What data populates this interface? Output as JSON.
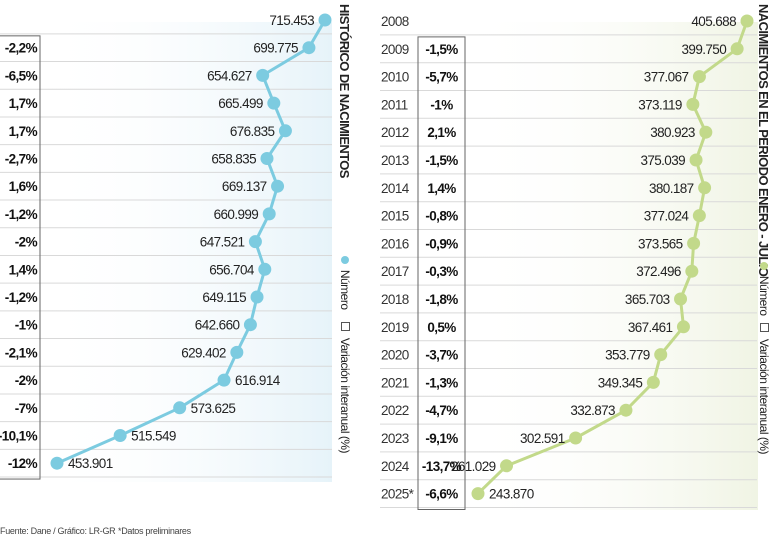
{
  "footer": {
    "source": "Fuente: Dane / Gráfico: LR-GR",
    "note": "*Datos preliminares"
  },
  "colors": {
    "left_series": "#7ccbe0",
    "right_series": "#c2d98a",
    "left_bg_fade": "#e8f4fa",
    "right_bg_fade": "#f1f5e6",
    "grid": "#d9d9d9",
    "box_border": "#666666"
  },
  "chart_data": [
    {
      "type": "line",
      "orientation": "horizontal-values-vertical-categories",
      "title": "HISTÓRICO DE NACIMIENTOS",
      "legend": [
        {
          "name": "Número",
          "marker": "dot"
        },
        {
          "name": "Variación interanual (%)",
          "marker": "square-outline"
        }
      ],
      "legend_placement": "right-vertical",
      "categories": [
        "2008",
        "2009",
        "2010",
        "2011",
        "2012",
        "2013",
        "2014",
        "2015",
        "2016",
        "2017",
        "2018",
        "2019",
        "2020",
        "2021",
        "2022",
        "2023",
        "2024"
      ],
      "series": [
        {
          "name": "Número",
          "values": [
            715453,
            699775,
            654627,
            665499,
            676835,
            658835,
            669137,
            660999,
            647521,
            656704,
            649115,
            642660,
            629402,
            616914,
            573625,
            515549,
            453901
          ],
          "labels": [
            "715.453",
            "699.775",
            "654.627",
            "665.499",
            "676.835",
            "658.835",
            "669.137",
            "660.999",
            "647.521",
            "656.704",
            "649.115",
            "642.660",
            "629.402",
            "616.914",
            "573.625",
            "515.549",
            "453.901"
          ]
        },
        {
          "name": "Variación interanual (%)",
          "labels": [
            "",
            "-2,2%",
            "-6,5%",
            "1,7%",
            "1,7%",
            "-2,7%",
            "1,6%",
            "-1,2%",
            "-2%",
            "1,4%",
            "-1,2%",
            "-1%",
            "-2,1%",
            "-2%",
            "-7%",
            "-10,1%",
            "-12%"
          ]
        }
      ],
      "xlim": [
        453901,
        715453
      ],
      "grid": true
    },
    {
      "type": "line",
      "orientation": "horizontal-values-vertical-categories",
      "title": "NACIMIENTOS EN EL PERIODO ENERO - JULIO",
      "legend": [
        {
          "name": "Número",
          "marker": "dot"
        },
        {
          "name": "Variación interanual (%)",
          "marker": "square-outline"
        }
      ],
      "legend_placement": "right-vertical",
      "categories": [
        "2008",
        "2009",
        "2010",
        "2011",
        "2012",
        "2013",
        "2014",
        "2015",
        "2016",
        "2017",
        "2018",
        "2019",
        "2020",
        "2021",
        "2022",
        "2023",
        "2024",
        "2025*"
      ],
      "series": [
        {
          "name": "Número",
          "values": [
            405688,
            399750,
            377067,
            373119,
            380923,
            375039,
            380187,
            377024,
            373565,
            372496,
            365703,
            367461,
            353779,
            349345,
            332873,
            302591,
            261029,
            243870
          ],
          "labels": [
            "405.688",
            "399.750",
            "377.067",
            "373.119",
            "380.923",
            "375.039",
            "380.187",
            "377.024",
            "373.565",
            "372.496",
            "365.703",
            "367.461",
            "353.779",
            "349.345",
            "332.873",
            "302.591",
            "261.029",
            "243.870"
          ]
        },
        {
          "name": "Variación interanual (%)",
          "labels": [
            "",
            "-1,5%",
            "-5,7%",
            "-1%",
            "2,1%",
            "-1,5%",
            "1,4%",
            "-0,8%",
            "-0,9%",
            "-0,3%",
            "-1,8%",
            "0,5%",
            "-3,7%",
            "-1,3%",
            "-4,7%",
            "-9,1%",
            "-13,7%",
            "-6,6%"
          ]
        }
      ],
      "xlim": [
        243870,
        405688
      ],
      "grid": true
    }
  ]
}
